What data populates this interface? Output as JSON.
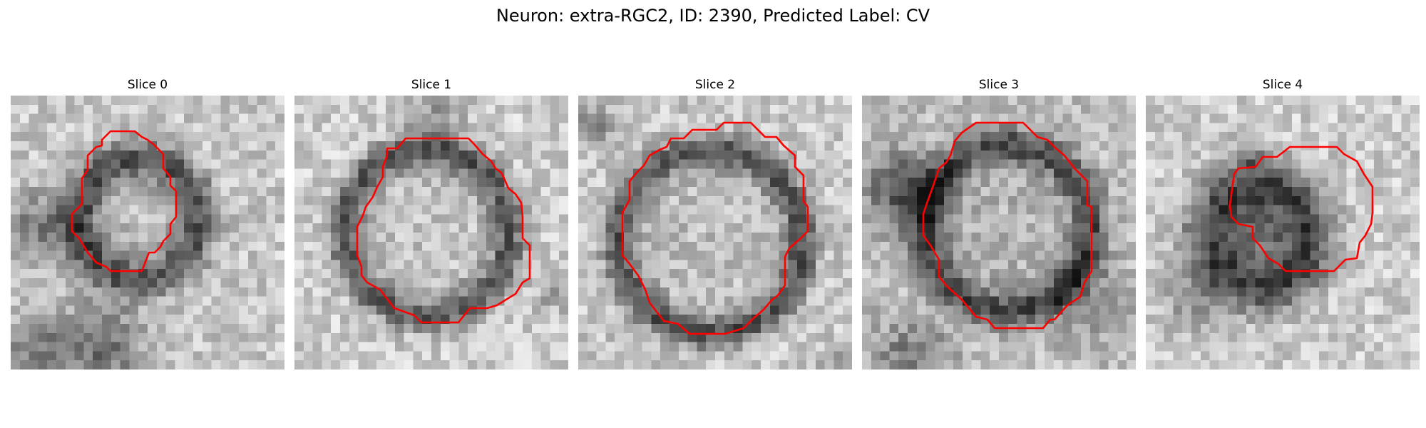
{
  "figure": {
    "title": "Neuron: extra-RGC2, ID: 2390, Predicted Label: CV"
  },
  "panels": [
    {
      "label": "Slice 0"
    },
    {
      "label": "Slice 1"
    },
    {
      "label": "Slice 2"
    },
    {
      "label": "Slice 3"
    },
    {
      "label": "Slice 4"
    }
  ],
  "colors": {
    "contour": "#ff0000",
    "image_colormap": "grayscale"
  }
}
